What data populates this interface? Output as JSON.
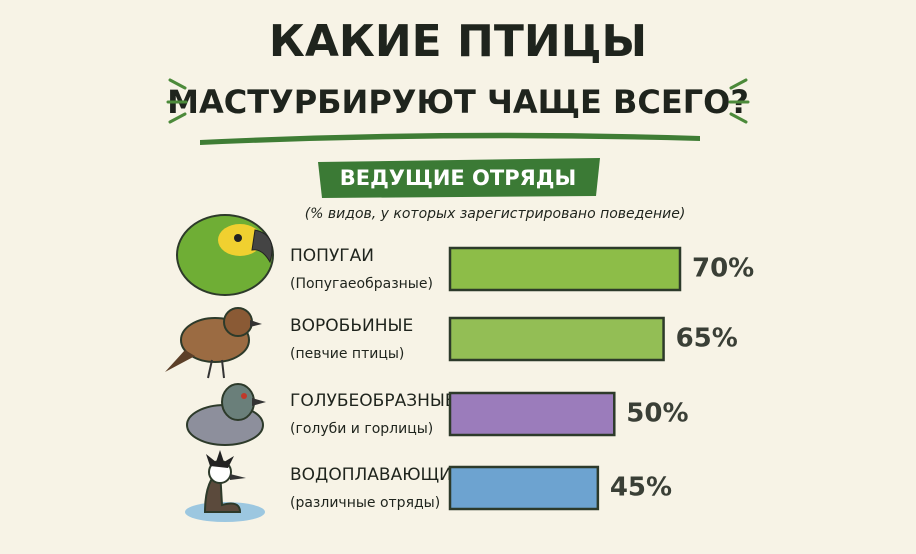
{
  "chart_data": {
    "type": "bar",
    "title": [
      "КАКИЕ ПТИЦЫ",
      "МАСТУРБИРУЮТ ЧАЩЕ ВСЕГО?"
    ],
    "subtitle": "ВЕДУЩИЕ ОТРЯДЫ",
    "note": "(% видов, у которых зарегистрировано поведение)",
    "categories": [
      "ПОПУГАИ",
      "ВОРОБЬИНЫЕ",
      "ГОЛУБЕОБРАЗНЫЕ",
      "ВОДОПЛАВАЮЩИЕ"
    ],
    "category_notes": [
      "(Попугаеобразные)",
      "(певчие птицы)",
      "(голуби и горлицы)",
      "(различные отряды)"
    ],
    "values": [
      70,
      65,
      50,
      45
    ],
    "value_labels": [
      "70%",
      "65%",
      "50%",
      "45%"
    ],
    "colors": [
      "#8dbd48",
      "#93be55",
      "#9b7cbb",
      "#6da3d0"
    ]
  }
}
